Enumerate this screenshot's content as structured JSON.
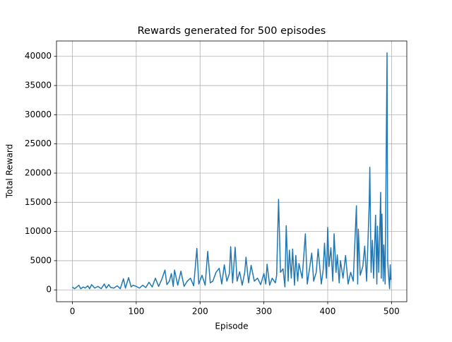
{
  "chart_data": {
    "type": "line",
    "title": "Rewards generated for 500 episodes",
    "xlabel": "Episode",
    "ylabel": "Total Reward",
    "x": [
      0,
      3,
      6,
      10,
      13,
      17,
      20,
      24,
      27,
      30,
      35,
      40,
      45,
      50,
      53,
      57,
      60,
      65,
      70,
      75,
      80,
      83,
      88,
      92,
      95,
      100,
      105,
      110,
      115,
      120,
      125,
      130,
      135,
      140,
      145,
      148,
      152,
      155,
      158,
      160,
      165,
      170,
      175,
      180,
      185,
      190,
      195,
      198,
      203,
      208,
      212,
      216,
      220,
      225,
      230,
      234,
      238,
      242,
      246,
      248,
      251,
      255,
      258,
      262,
      266,
      270,
      272,
      276,
      280,
      285,
      290,
      295,
      300,
      303,
      305,
      309,
      313,
      318,
      320,
      323,
      326,
      330,
      333,
      335,
      338,
      340,
      343,
      345,
      348,
      350,
      353,
      355,
      360,
      365,
      368,
      372,
      375,
      378,
      382,
      385,
      390,
      393,
      395,
      398,
      400,
      402,
      405,
      408,
      410,
      413,
      415,
      418,
      420,
      424,
      428,
      432,
      436,
      440,
      445,
      447,
      448,
      451,
      455,
      458,
      461,
      465,
      466,
      468,
      470,
      472,
      475,
      477,
      478,
      480,
      483,
      484,
      485,
      487,
      488,
      490,
      493,
      494,
      495,
      497,
      498,
      499
    ],
    "series": [
      {
        "name": "Total Reward",
        "color": "#1f77b4",
        "values": [
          500,
          200,
          400,
          800,
          200,
          500,
          300,
          700,
          200,
          900,
          300,
          600,
          200,
          1000,
          300,
          900,
          400,
          300,
          700,
          200,
          1900,
          300,
          2100,
          500,
          800,
          600,
          300,
          800,
          400,
          1300,
          500,
          2000,
          600,
          1800,
          3400,
          900,
          1500,
          2800,
          600,
          3400,
          800,
          3200,
          600,
          1500,
          2000,
          700,
          7100,
          1000,
          2500,
          800,
          6600,
          1200,
          1500,
          3000,
          3700,
          1000,
          4300,
          1500,
          2800,
          7400,
          1200,
          7300,
          1500,
          3100,
          800,
          3000,
          5600,
          1200,
          4200,
          1500,
          2000,
          900,
          2800,
          1000,
          4400,
          800,
          2000,
          1200,
          2500,
          15500,
          3000,
          3600,
          500,
          11000,
          1500,
          6800,
          2000,
          7000,
          800,
          5900,
          1500,
          4500,
          2000,
          9600,
          1000,
          4000,
          6300,
          1500,
          3000,
          7000,
          1000,
          3500,
          8000,
          2000,
          10700,
          4000,
          7200,
          1500,
          9600,
          3000,
          6000,
          1200,
          5000,
          2000,
          5900,
          1000,
          3000,
          1500,
          14400,
          1000,
          10400,
          2500,
          4000,
          7500,
          1500,
          14500,
          21000,
          3000,
          8500,
          2000,
          12800,
          1000,
          10900,
          3000,
          16700,
          2000,
          13000,
          1500,
          7700,
          1000,
          40600,
          5000,
          3000,
          200,
          4300,
          1700
        ]
      }
    ],
    "xlim": [
      -24.95,
      523.95
    ],
    "ylim": [
      -2030,
      42630
    ],
    "xticks": [
      0,
      100,
      200,
      300,
      400,
      500
    ],
    "yticks": [
      0,
      5000,
      10000,
      15000,
      20000,
      25000,
      30000,
      35000,
      40000
    ],
    "grid": true
  }
}
